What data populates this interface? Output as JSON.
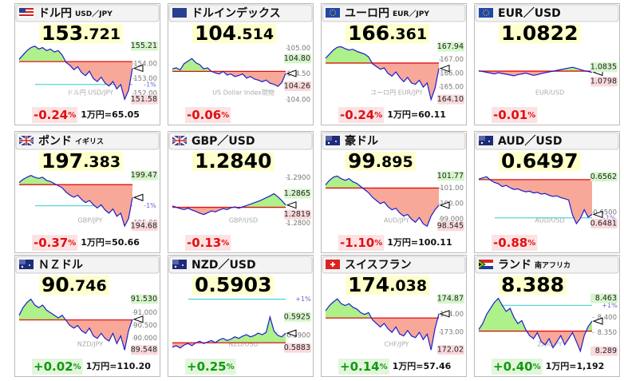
{
  "tiles": [
    {
      "name": "ドル円",
      "name_sub": "USD／JPY",
      "price_int": "153",
      "price_dec": ".721",
      "change": "-0.24",
      "change_unit": "%",
      "yen": "1万円=65.05",
      "chart": {
        "ylim": [
          151.4,
          155.4
        ],
        "base": 154.15,
        "watermark": "ドル円 USD/JPY",
        "ticks": [
          {
            "value": 154,
            "label": "154.00"
          },
          {
            "value": 153,
            "label": "153.00"
          },
          {
            "value": 152,
            "label": "152.00"
          }
        ],
        "pct_lines": [
          {
            "value": 152.6,
            "label": "-1%"
          }
        ],
        "high": 155.21,
        "low": 151.58,
        "values": [
          154.3,
          154.6,
          154.9,
          155.1,
          155.2,
          155.0,
          155.1,
          154.9,
          155.0,
          154.8,
          154.9,
          154.6,
          154.1,
          153.9,
          153.6,
          153.8,
          153.4,
          153.2,
          153.5,
          153.0,
          152.8,
          153.1,
          152.7,
          152.5,
          152.8,
          152.3,
          152.6,
          151.6,
          152.2,
          153.7
        ]
      }
    },
    {
      "name": "ドルインデックス",
      "price_int": "104",
      "price_dec": ".514",
      "change": "-0.06",
      "change_unit": "%",
      "chart": {
        "ylim": [
          103.95,
          105.1
        ],
        "base": 104.55,
        "watermark": "US Dollar Index現物",
        "ticks": [
          {
            "value": 105,
            "label": "105.00"
          },
          {
            "value": 104.5,
            "label": "104.50"
          },
          {
            "value": 104,
            "label": "104.00"
          }
        ],
        "high": {
          "value": 104.8,
          "label": "104.80"
        },
        "low": 104.26,
        "values": [
          104.6,
          104.62,
          104.58,
          104.7,
          104.75,
          104.8,
          104.72,
          104.68,
          104.6,
          104.62,
          104.55,
          104.52,
          104.5,
          104.55,
          104.48,
          104.5,
          104.45,
          104.47,
          104.5,
          104.42,
          104.45,
          104.4,
          104.38,
          104.35,
          104.38,
          104.32,
          104.3,
          104.26,
          104.33,
          104.51
        ]
      }
    },
    {
      "name": "ユーロ円",
      "name_sub": "EUR／JPY",
      "price_int": "166",
      "price_dec": ".361",
      "change": "-0.24",
      "change_unit": "%",
      "yen": "1万円=60.11",
      "chart": {
        "ylim": [
          163.9,
          168.2
        ],
        "base": 166.75,
        "watermark": "ユーロ円 EUR/JPY",
        "ticks": [
          {
            "value": 167,
            "label": "167.00"
          },
          {
            "value": 166,
            "label": "166.00"
          },
          {
            "value": 165,
            "label": "165.00"
          }
        ],
        "high": 167.94,
        "low": {
          "value": 164.1,
          "label": "164.10"
        },
        "values": [
          167.1,
          167.4,
          167.7,
          167.9,
          167.94,
          167.8,
          167.7,
          167.75,
          167.6,
          167.5,
          167.4,
          167.2,
          166.7,
          166.5,
          166.3,
          166.4,
          166.0,
          165.8,
          166.1,
          165.7,
          165.4,
          165.7,
          165.3,
          165.2,
          165.5,
          165.0,
          165.3,
          164.1,
          164.9,
          166.36
        ]
      }
    },
    {
      "name": "EUR／USD",
      "price_int": "1.0822",
      "change": "-0.01",
      "change_unit": "%",
      "chart": {
        "ylim": [
          1.0745,
          1.0897
        ],
        "base": 1.0825,
        "watermark": "EUR/USD",
        "ticks": [],
        "high": 1.0835,
        "low": 1.0798,
        "values": [
          1.0826,
          1.0824,
          1.0822,
          1.082,
          1.0818,
          1.0821,
          1.0819,
          1.0817,
          1.0815,
          1.0813,
          1.0816,
          1.0818,
          1.082,
          1.0817,
          1.0814,
          1.0816,
          1.0819,
          1.0821,
          1.0823,
          1.0825,
          1.0827,
          1.0829,
          1.0831,
          1.0833,
          1.0835,
          1.0832,
          1.0829,
          1.0826,
          1.0824,
          1.0822
        ]
      }
    },
    {
      "name": "ポンド",
      "name_sub": "イギリス",
      "price_int": "197",
      "price_dec": ".383",
      "change": "-0.37",
      "change_unit": "%",
      "yen": "1万円=50.66",
      "chart": {
        "ylim": [
          194.3,
          199.9
        ],
        "base": 198.6,
        "watermark": "GBP/JPY",
        "ticks": [
          {
            "value": 195,
            "label": "195.00"
          }
        ],
        "pct_lines": [
          {
            "value": 196.6,
            "label": "-1%"
          }
        ],
        "high": 199.47,
        "low": 194.68,
        "values": [
          198.8,
          199.1,
          199.3,
          199.47,
          199.3,
          199.2,
          199.3,
          199.0,
          198.9,
          198.7,
          198.5,
          198.3,
          197.9,
          197.6,
          197.4,
          197.6,
          197.2,
          196.9,
          197.1,
          196.7,
          196.4,
          196.7,
          196.2,
          195.9,
          196.3,
          195.6,
          195.9,
          194.68,
          195.4,
          197.383
        ]
      }
    },
    {
      "name": "GBP／USD",
      "price_int": "1.2840",
      "change": "-0.13",
      "change_unit": "%",
      "chart": {
        "ylim": [
          1.2785,
          1.2915
        ],
        "base": 1.2835,
        "watermark": "GBP/USD",
        "ticks": [
          {
            "value": 1.29,
            "label": "1.2900"
          },
          {
            "value": 1.28,
            "label": "1.2800"
          }
        ],
        "high": 1.2865,
        "low": 1.2819,
        "values": [
          1.2838,
          1.2835,
          1.2832,
          1.283,
          1.2833,
          1.2829,
          1.2826,
          1.2822,
          1.2819,
          1.2823,
          1.2827,
          1.2825,
          1.2829,
          1.2832,
          1.283,
          1.2834,
          1.2836,
          1.2833,
          1.2836,
          1.2839,
          1.2842,
          1.2845,
          1.2848,
          1.2852,
          1.2856,
          1.286,
          1.2865,
          1.2858,
          1.285,
          1.284
        ]
      }
    },
    {
      "name": "豪ドル",
      "price_int": "99",
      "price_dec": ".895",
      "change": "-1.10",
      "change_unit": "%",
      "yen": "1万円=100.11",
      "chart": {
        "ylim": [
          98.3,
          102.1
        ],
        "base": 101.0,
        "watermark": "AUD/JPY",
        "ticks": [
          {
            "value": 101,
            "label": "101.00"
          },
          {
            "value": 100,
            "label": "100.00"
          },
          {
            "value": 99,
            "label": "99.000"
          }
        ],
        "high": 101.77,
        "low": 98.545,
        "values": [
          101.2,
          101.5,
          101.7,
          101.77,
          101.6,
          101.5,
          101.6,
          101.4,
          101.3,
          101.1,
          100.9,
          100.7,
          100.4,
          100.2,
          100.0,
          100.1,
          99.8,
          99.6,
          99.7,
          99.4,
          99.2,
          99.3,
          99.0,
          98.8,
          99.1,
          98.7,
          98.545,
          99.2,
          99.6,
          99.895
        ]
      }
    },
    {
      "name": "AUD／USD",
      "price_int": "0.6497",
      "change": "-0.88",
      "change_unit": "%",
      "chart": {
        "ylim": [
          0.647,
          0.6572
        ],
        "base": 0.6557,
        "watermark": "AUD/USD",
        "ticks": [
          {
            "value": 0.65,
            "label": "0.6500"
          }
        ],
        "pct_lines": [
          {
            "value": 0.6491,
            "label": "-1%"
          }
        ],
        "high": 0.6562,
        "low": 0.6481,
        "values": [
          0.6558,
          0.656,
          0.6562,
          0.6556,
          0.6552,
          0.655,
          0.6545,
          0.6547,
          0.6543,
          0.654,
          0.6541,
          0.6538,
          0.6536,
          0.6537,
          0.6534,
          0.6535,
          0.6532,
          0.6533,
          0.653,
          0.6528,
          0.6529,
          0.6526,
          0.6524,
          0.6522,
          0.6496,
          0.6481,
          0.649,
          0.6505,
          0.6492,
          0.6497
        ]
      }
    },
    {
      "name": "ＮＺドル",
      "price_int": "90",
      "price_dec": ".746",
      "change": "+0.02",
      "change_unit": "%",
      "yen": "1万円=110.20",
      "chart": {
        "ylim": [
          89.4,
          91.7
        ],
        "base": 90.72,
        "watermark": "NZD/JPY",
        "ticks": [
          {
            "value": 91,
            "label": "91.000"
          },
          {
            "value": 90.5,
            "label": "90.500"
          },
          {
            "value": 90,
            "label": "90.000"
          }
        ],
        "high": {
          "value": 91.53,
          "label": "91.530"
        },
        "low": 89.548,
        "values": [
          90.9,
          91.2,
          91.4,
          91.53,
          91.3,
          91.2,
          91.3,
          91.1,
          91.0,
          90.9,
          90.8,
          90.9,
          90.7,
          90.5,
          90.4,
          90.5,
          90.3,
          90.2,
          90.4,
          90.1,
          90.0,
          90.2,
          90.0,
          89.9,
          90.2,
          89.8,
          90.1,
          89.548,
          90.3,
          90.746
        ]
      }
    },
    {
      "name": "NZD／USD",
      "price_int": "0.5903",
      "change": "+0.25",
      "change_unit": "%",
      "chart": {
        "ylim": [
          0.5875,
          0.5955
        ],
        "base": 0.589,
        "watermark": "NZD/USD",
        "ticks": [
          {
            "value": 0.59,
            "label": "0.5900"
          }
        ],
        "pct_lines": [
          {
            "value": 0.5949,
            "label": "+1%"
          }
        ],
        "high": 0.5925,
        "low": 0.5883,
        "values": [
          0.5884,
          0.5886,
          0.5883,
          0.5887,
          0.5889,
          0.5886,
          0.589,
          0.5892,
          0.5889,
          0.5891,
          0.5893,
          0.589,
          0.5894,
          0.5896,
          0.5893,
          0.5895,
          0.5898,
          0.5896,
          0.5899,
          0.5901,
          0.5898,
          0.59,
          0.5903,
          0.5901,
          0.5904,
          0.5925,
          0.5906,
          0.59,
          0.5898,
          0.5903
        ]
      }
    },
    {
      "name": "スイスフラン",
      "price_int": "174",
      "price_dec": ".038",
      "change": "+0.14",
      "change_unit": "%",
      "yen": "1万円=57.46",
      "chart": {
        "ylim": [
          171.8,
          175.1
        ],
        "base": 173.8,
        "watermark": "CHF/JPY",
        "ticks": [
          {
            "value": 174,
            "label": "174.00"
          },
          {
            "value": 173,
            "label": "173.00"
          }
        ],
        "high": 174.87,
        "low": 172.02,
        "values": [
          174.2,
          174.5,
          174.7,
          174.87,
          174.6,
          174.5,
          174.6,
          174.4,
          174.3,
          174.1,
          174.0,
          174.1,
          173.7,
          173.5,
          173.3,
          173.5,
          173.2,
          173.0,
          173.3,
          172.9,
          172.8,
          173.1,
          172.8,
          172.7,
          173.0,
          172.6,
          172.9,
          172.02,
          173.2,
          174.038
        ]
      }
    },
    {
      "name": "ランド",
      "name_sub": "南アフリカ",
      "price_int": "8.388",
      "change": "+0.40",
      "change_unit": "%",
      "yen": "1万円=1,192",
      "chart": {
        "ylim": [
          8.28,
          8.475
        ],
        "base": 8.355,
        "watermark": "ZAR/JPY",
        "ticks": [
          {
            "value": 8.4,
            "label": "8.400"
          },
          {
            "value": 8.35,
            "label": "8.350"
          }
        ],
        "pct_lines": [
          {
            "value": 8.44,
            "label": "+1%"
          }
        ],
        "high": 8.463,
        "low": 8.289,
        "values": [
          8.36,
          8.38,
          8.41,
          8.43,
          8.45,
          8.463,
          8.44,
          8.42,
          8.43,
          8.4,
          8.38,
          8.39,
          8.36,
          8.34,
          8.33,
          8.35,
          8.32,
          8.31,
          8.33,
          8.3,
          8.32,
          8.34,
          8.31,
          8.33,
          8.35,
          8.32,
          8.289,
          8.34,
          8.37,
          8.388
        ]
      }
    }
  ]
}
